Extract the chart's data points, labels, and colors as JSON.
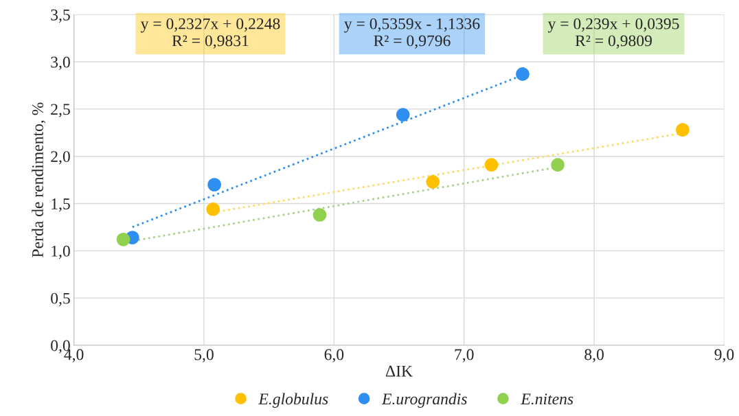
{
  "chart_data": {
    "type": "scatter",
    "xlabel": "ΔIK",
    "ylabel": "Perda de rendimento, %",
    "xlim": [
      4.0,
      9.0
    ],
    "xticks": [
      {
        "value": 4,
        "label": "4,0"
      },
      {
        "value": 5,
        "label": "5,0"
      },
      {
        "value": 6,
        "label": "6,0"
      },
      {
        "value": 7,
        "label": "7,0"
      },
      {
        "value": 8,
        "label": "8,0"
      },
      {
        "value": 9,
        "label": "9,0"
      }
    ],
    "ylim": [
      0,
      3.5
    ],
    "yticks": [
      {
        "value": 0,
        "label": "0,0"
      },
      {
        "value": 0.5,
        "label": "0,5"
      },
      {
        "value": 1,
        "label": "1,0"
      },
      {
        "value": 1.5,
        "label": "1,5"
      },
      {
        "value": 2,
        "label": "2,0"
      },
      {
        "value": 2.5,
        "label": "2,5"
      },
      {
        "value": 3,
        "label": "3,0"
      },
      {
        "value": 3.5,
        "label": "3,5"
      }
    ],
    "grid": true,
    "legend": "bottom",
    "marker": "circle",
    "series": [
      {
        "name": "E.globulus",
        "color": "#ffc000",
        "x": [
          5.07,
          6.76,
          7.21,
          8.68
        ],
        "values": [
          1.44,
          1.73,
          1.91,
          2.28
        ]
      },
      {
        "name": "E.urograndis",
        "color": "#2e8ff0",
        "x": [
          4.45,
          5.08,
          6.53,
          7.45
        ],
        "values": [
          1.14,
          1.7,
          2.44,
          2.87
        ]
      },
      {
        "name": "E.nitens",
        "color": "#92d050",
        "x": [
          4.38,
          5.89,
          7.72
        ],
        "values": [
          1.12,
          1.38,
          1.91
        ]
      },
      {
        "type": "line",
        "marker": "none",
        "color": "#ffd966",
        "line_style": "dotted",
        "x": [
          5.07,
          8.68
        ],
        "values": [
          1.405,
          2.245
        ]
      },
      {
        "type": "line",
        "marker": "none",
        "color": "#2e8ff0",
        "line_style": "dotted",
        "x": [
          4.45,
          7.45
        ],
        "values": [
          1.251,
          2.859
        ]
      },
      {
        "type": "line",
        "marker": "none",
        "color": "#a9d18e",
        "line_style": "dotted",
        "x": [
          4.38,
          7.72
        ],
        "values": [
          1.086,
          1.885
        ]
      }
    ],
    "annotations": [
      "y = 0,2327x + 0,2248\nR² = 0,9831",
      "y = 0,5359x - 1,1336\nR² = 0,9796",
      "y = 0,239x + 0,0395\nR² = 0,9809"
    ]
  }
}
